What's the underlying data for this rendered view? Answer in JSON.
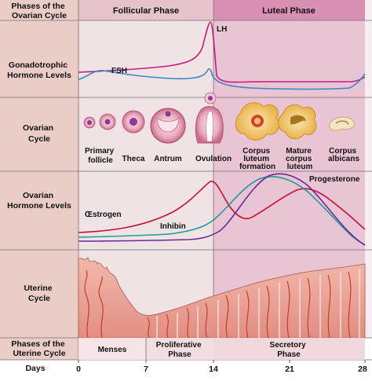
{
  "rows": {
    "phases_ovarian": [
      "Phases of the",
      "Ovarian Cycle"
    ],
    "gonadotrophic": [
      "Gonadotrophic",
      "Hormone Levels"
    ],
    "ovarian_cycle": [
      "Ovarian",
      "Cycle"
    ],
    "ovarian_hormone": [
      "Ovarian",
      "Hormone Levels"
    ],
    "uterine_cycle": [
      "Uterine",
      "Cycle"
    ],
    "phases_uterine": [
      "Phases of the",
      "Uterine Cycle"
    ],
    "days": "Days"
  },
  "phases": {
    "follicular": "Follicular Phase",
    "luteal": "Luteal Phase",
    "menses": "Menses",
    "proliferative": [
      "Proliferative",
      "Phase"
    ],
    "secretory": [
      "Secretory",
      "Phase"
    ]
  },
  "hormones": {
    "lh": "LH",
    "fsh": "FSH",
    "oestrogen": "Œstrogen",
    "inhibin": "Inhibin",
    "progesterone": "Progesterone"
  },
  "stages": {
    "primary": [
      "Primary",
      "follicle"
    ],
    "theca": [
      "Theca"
    ],
    "antrum": [
      "Antrum"
    ],
    "ovulation": [
      "Ovulation"
    ],
    "cl_formation": [
      "Corpus",
      "luteum",
      "formation"
    ],
    "mature_cl": [
      "Mature",
      "corpus",
      "luteum"
    ],
    "albicans": [
      "Corpus",
      "albicans"
    ]
  },
  "days_ticks": [
    "0",
    "7",
    "14",
    "21",
    "28"
  ],
  "colors": {
    "follicular_band": "#efe3e4",
    "luteal_band": "#e6b6cc",
    "label_column": "#ebcdc8",
    "lh_fsh": "#c81d7c",
    "fsh_line": "#3a86c8",
    "oestrogen": "#c8102e",
    "inhibin": "#7a4aa8",
    "progesterone_teal": "#1f9c9c",
    "progesterone_purple": "#6a2a98",
    "endometrium": "#e39a90",
    "corpus_luteum": "#f3cf7a"
  }
}
